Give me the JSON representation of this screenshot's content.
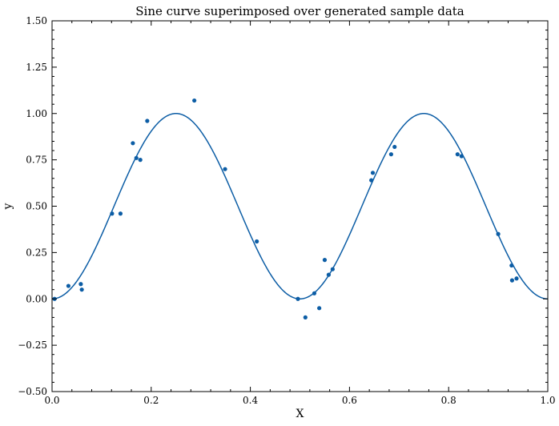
{
  "chart_data": {
    "type": "scatter",
    "title": "Sine curve superimposed over generated sample data",
    "xlabel": "X",
    "ylabel": "y",
    "xlim": [
      0.0,
      1.0
    ],
    "ylim": [
      -0.5,
      1.5
    ],
    "xticks": [
      0.0,
      0.2,
      0.4,
      0.6,
      0.8,
      1.0
    ],
    "xtick_labels": [
      "0.0",
      "0.2",
      "0.4",
      "0.6",
      "0.8",
      "1.0"
    ],
    "yticks": [
      -0.5,
      -0.25,
      0.0,
      0.25,
      0.5,
      0.75,
      1.0,
      1.25,
      1.5
    ],
    "ytick_labels": [
      "−0.50",
      "−0.25",
      "0.00",
      "0.25",
      "0.50",
      "0.75",
      "1.00",
      "1.25",
      "1.50"
    ],
    "grid": false,
    "colors": {
      "series": "#0c5da5",
      "axes": "#000000"
    },
    "series": [
      {
        "type": "scatter",
        "x": [
          0.005,
          0.033,
          0.058,
          0.06,
          0.121,
          0.138,
          0.163,
          0.17,
          0.178,
          0.192,
          0.287,
          0.349,
          0.413,
          0.496,
          0.511,
          0.529,
          0.539,
          0.55,
          0.558,
          0.566,
          0.644,
          0.647,
          0.684,
          0.691,
          0.818,
          0.826,
          0.9,
          0.927,
          0.928,
          0.937
        ],
        "y": [
          0.0,
          0.07,
          0.08,
          0.05,
          0.46,
          0.46,
          0.84,
          0.76,
          0.75,
          0.96,
          1.07,
          0.7,
          0.31,
          0.0,
          -0.1,
          0.03,
          -0.05,
          0.21,
          0.13,
          0.16,
          0.64,
          0.68,
          0.78,
          0.82,
          0.78,
          0.77,
          0.35,
          0.18,
          0.1,
          0.11
        ]
      },
      {
        "type": "line",
        "function": "sin^2(2*pi*x)",
        "x_range": [
          0.0,
          1.0
        ]
      }
    ]
  }
}
